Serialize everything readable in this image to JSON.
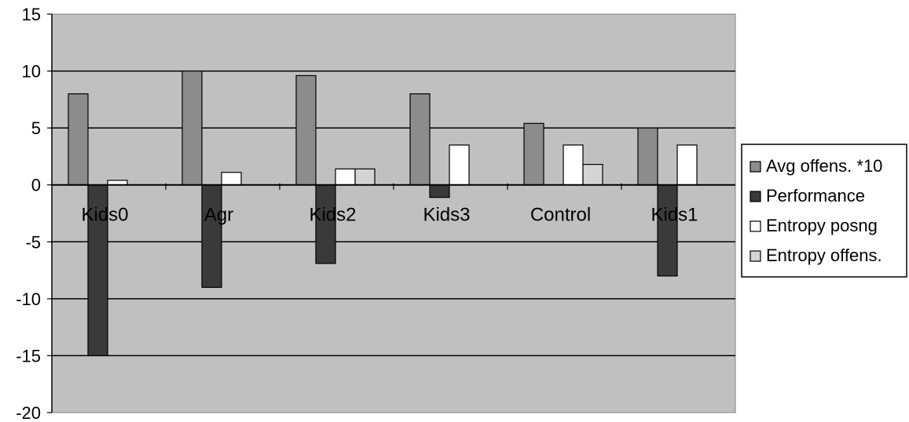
{
  "chart_data": {
    "type": "bar",
    "categories": [
      "Kids0",
      "Agr",
      "Kids2",
      "Kids3",
      "Control",
      "Kids1"
    ],
    "series": [
      {
        "name": "Avg offens. *10",
        "values": [
          8,
          10,
          9.6,
          8,
          5.4,
          5
        ],
        "color": "#8c8c8c"
      },
      {
        "name": "Performance",
        "values": [
          -15,
          -9,
          -6.9,
          -1.1,
          0,
          -8
        ],
        "color": "#3a3a3a"
      },
      {
        "name": "Entropy posng",
        "values": [
          0.4,
          1.1,
          1.4,
          3.5,
          3.5,
          3.5
        ],
        "color": "#ffffff"
      },
      {
        "name": "Entropy offens.",
        "values": [
          0,
          0,
          1.4,
          0,
          1.8,
          0
        ],
        "color": "#d4d4d4"
      }
    ],
    "ylim": [
      -20,
      15
    ],
    "yticks": [
      15,
      10,
      5,
      0,
      -5,
      -10,
      -15,
      -20
    ],
    "grid": true,
    "legend_position": "right",
    "plot_background": "#c0c0c0"
  }
}
